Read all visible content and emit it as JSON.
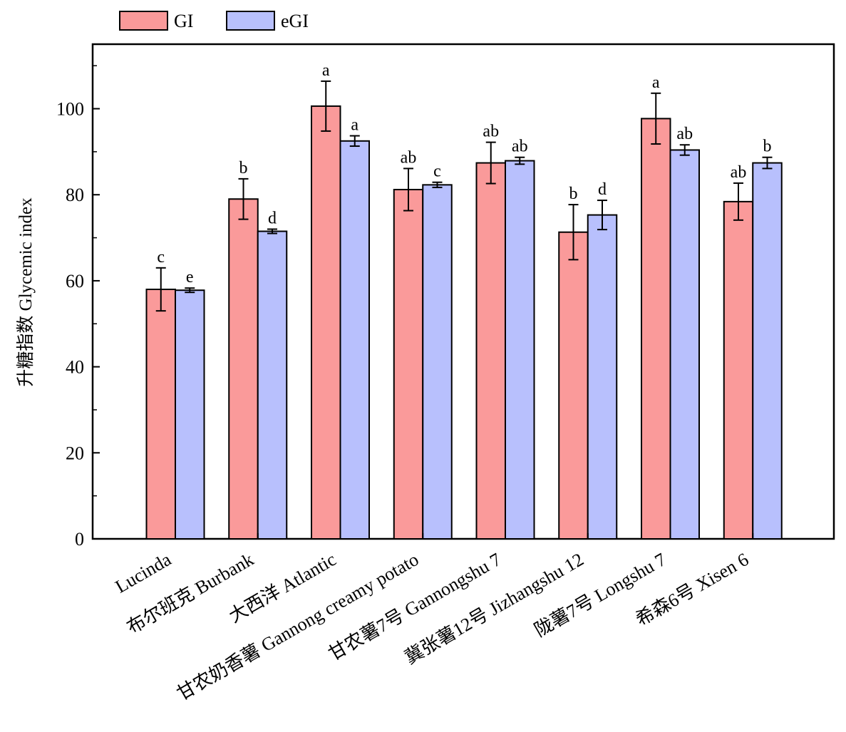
{
  "chart_data": {
    "type": "bar",
    "ylabel": "升糖指数 Glycemic index",
    "xlabel": "",
    "ylim": [
      0,
      115
    ],
    "yticks": [
      0,
      20,
      40,
      60,
      80,
      100
    ],
    "grid": false,
    "legend_position": "top-left",
    "categories": [
      "Lucinda",
      "布尔班克 Burbank",
      "大西洋 Atlantic",
      "甘农奶香薯 Gannong creamy potato",
      "甘农薯7号 Gannongshu 7",
      "冀张薯12号 Jizhangshu 12",
      "陇薯7号 Longshu 7",
      "希森6号 Xisen 6"
    ],
    "series": [
      {
        "name": "GI",
        "color": "#fa9a9a",
        "values": [
          58.0,
          79.0,
          100.6,
          81.2,
          87.4,
          71.3,
          97.7,
          78.4
        ],
        "errors": [
          5.0,
          4.7,
          5.8,
          4.9,
          4.8,
          6.4,
          5.9,
          4.3
        ],
        "letters": [
          "c",
          "b",
          "a",
          "ab",
          "ab",
          "b",
          "a",
          "ab"
        ]
      },
      {
        "name": "eGI",
        "color": "#b8c0fd",
        "values": [
          57.8,
          71.5,
          92.5,
          82.3,
          87.9,
          75.3,
          90.4,
          87.4
        ],
        "errors": [
          0.5,
          0.5,
          1.2,
          0.6,
          0.8,
          3.4,
          1.2,
          1.3
        ],
        "letters": [
          "e",
          "d",
          "a",
          "c",
          "ab",
          "d",
          "ab",
          "b"
        ]
      }
    ]
  }
}
